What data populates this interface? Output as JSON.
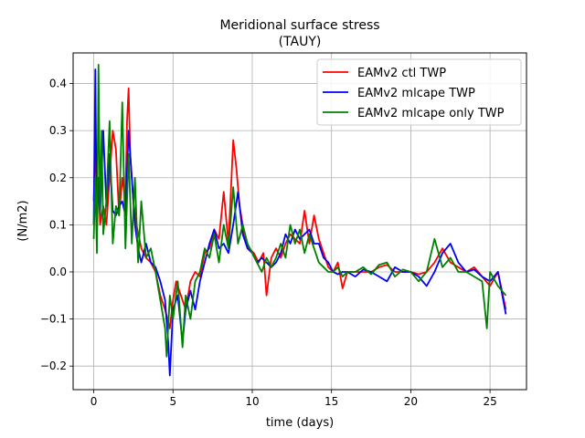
{
  "chart_data": {
    "type": "line",
    "title": "Meridional surface stress",
    "subtitle": "(TAUY)",
    "xlabel": "time (days)",
    "ylabel": "(N/m2)",
    "xlim": [
      -1.3,
      27.3
    ],
    "ylim": [
      -0.25,
      0.465
    ],
    "x_ticks": [
      0,
      5,
      10,
      15,
      20,
      25
    ],
    "y_ticks": [
      -0.2,
      -0.1,
      0.0,
      0.1,
      0.2,
      0.3,
      0.4
    ],
    "x_tick_labels": [
      "0",
      "5",
      "10",
      "15",
      "20",
      "25"
    ],
    "y_tick_labels": [
      "−0.2",
      "−0.1",
      "0.0",
      "0.1",
      "0.2",
      "0.3",
      "0.4"
    ],
    "grid": true,
    "legend_position": "top-right",
    "series": [
      {
        "name": "EAMv2 ctl TWP",
        "color": "#ff0000",
        "x": [
          0,
          0.1,
          0.2,
          0.3,
          0.4,
          0.6,
          0.8,
          1.0,
          1.2,
          1.4,
          1.6,
          1.8,
          2.0,
          2.1,
          2.2,
          2.3,
          2.5,
          2.7,
          3.0,
          3.3,
          3.6,
          3.9,
          4.2,
          4.5,
          4.8,
          5.0,
          5.2,
          5.5,
          5.8,
          6.1,
          6.4,
          6.7,
          7.0,
          7.3,
          7.6,
          7.9,
          8.2,
          8.5,
          8.8,
          9.0,
          9.2,
          9.5,
          9.8,
          10.1,
          10.4,
          10.7,
          10.9,
          11.2,
          11.5,
          11.8,
          12.1,
          12.4,
          12.7,
          13.0,
          13.3,
          13.6,
          13.9,
          14.2,
          14.5,
          14.8,
          15.1,
          15.4,
          15.7,
          16.0,
          16.5,
          17.0,
          17.5,
          18.0,
          18.5,
          19.0,
          19.5,
          20.0,
          20.5,
          21.0,
          21.5,
          22.0,
          22.5,
          23.0,
          23.5,
          24.0,
          24.5,
          25.0,
          25.5,
          26.0
        ],
        "y": [
          0.15,
          0.29,
          0.12,
          0.2,
          0.1,
          0.14,
          0.1,
          0.2,
          0.3,
          0.26,
          0.12,
          0.2,
          0.15,
          0.32,
          0.39,
          0.25,
          0.15,
          0.1,
          0.05,
          0.03,
          0.02,
          0.0,
          -0.05,
          -0.08,
          -0.12,
          -0.06,
          -0.02,
          -0.05,
          -0.08,
          -0.02,
          0.0,
          -0.01,
          0.04,
          0.05,
          0.09,
          0.07,
          0.17,
          0.06,
          0.28,
          0.22,
          0.14,
          0.08,
          0.05,
          0.04,
          0.02,
          0.04,
          -0.05,
          0.03,
          0.05,
          0.03,
          0.06,
          0.08,
          0.07,
          0.06,
          0.13,
          0.06,
          0.12,
          0.07,
          0.04,
          0.01,
          0.0,
          0.02,
          -0.035,
          0.0,
          0.0,
          0.0,
          0.0,
          0.01,
          0.015,
          0.0,
          0.0,
          0.0,
          -0.005,
          0.0,
          0.02,
          0.05,
          0.02,
          0.01,
          0.0,
          0.01,
          -0.01,
          -0.03,
          0.0,
          -0.08
        ]
      },
      {
        "name": "EAMv2 mlcape TWP",
        "color": "#0000ff",
        "x": [
          0,
          0.1,
          0.2,
          0.3,
          0.4,
          0.6,
          0.8,
          1.0,
          1.2,
          1.4,
          1.6,
          1.8,
          2.0,
          2.2,
          2.4,
          2.6,
          2.8,
          3.0,
          3.3,
          3.6,
          3.9,
          4.2,
          4.5,
          4.7,
          4.8,
          5.0,
          5.3,
          5.6,
          5.8,
          6.1,
          6.4,
          6.7,
          7.0,
          7.3,
          7.6,
          7.9,
          8.2,
          8.5,
          8.8,
          9.1,
          9.4,
          9.7,
          10.0,
          10.3,
          10.6,
          10.9,
          11.2,
          11.5,
          11.8,
          12.1,
          12.4,
          12.7,
          13.0,
          13.3,
          13.6,
          13.9,
          14.2,
          14.5,
          14.8,
          15.1,
          15.4,
          15.7,
          16.0,
          16.5,
          17.0,
          17.5,
          18.0,
          18.5,
          19.0,
          19.5,
          20.0,
          20.5,
          21.0,
          21.5,
          22.0,
          22.5,
          23.0,
          23.5,
          24.0,
          24.5,
          25.0,
          25.5,
          26.0
        ],
        "y": [
          0.1,
          0.43,
          0.08,
          0.2,
          0.12,
          0.3,
          0.14,
          0.25,
          0.13,
          0.12,
          0.14,
          0.15,
          0.12,
          0.3,
          0.2,
          0.1,
          0.05,
          0.02,
          0.06,
          0.02,
          0.01,
          -0.02,
          -0.06,
          -0.15,
          -0.22,
          -0.08,
          -0.05,
          -0.15,
          -0.08,
          -0.04,
          -0.08,
          -0.02,
          0.02,
          0.06,
          0.09,
          0.05,
          0.06,
          0.04,
          0.1,
          0.17,
          0.08,
          0.05,
          0.04,
          0.02,
          0.03,
          0.02,
          0.01,
          0.02,
          0.04,
          0.08,
          0.06,
          0.09,
          0.07,
          0.08,
          0.09,
          0.06,
          0.06,
          0.03,
          0.02,
          0.0,
          -0.005,
          0.0,
          0.0,
          -0.01,
          0.005,
          0.0,
          -0.01,
          -0.02,
          0.01,
          0.0,
          0.0,
          -0.01,
          -0.03,
          0.0,
          0.04,
          0.06,
          0.02,
          0.0,
          0.005,
          -0.01,
          -0.02,
          0.0,
          -0.09
        ]
      },
      {
        "name": "EAMv2 mlcape only TWP",
        "color": "#008000",
        "x": [
          0,
          0.1,
          0.2,
          0.3,
          0.4,
          0.5,
          0.6,
          0.8,
          1.0,
          1.2,
          1.4,
          1.6,
          1.8,
          2.0,
          2.2,
          2.4,
          2.6,
          2.8,
          3.0,
          3.3,
          3.6,
          3.9,
          4.2,
          4.5,
          4.6,
          4.8,
          5.0,
          5.3,
          5.6,
          5.8,
          6.1,
          6.4,
          6.7,
          7.0,
          7.3,
          7.6,
          7.9,
          8.2,
          8.5,
          8.8,
          9.1,
          9.4,
          9.7,
          10.0,
          10.3,
          10.6,
          10.9,
          11.2,
          11.5,
          11.8,
          12.1,
          12.4,
          12.7,
          13.0,
          13.3,
          13.6,
          13.9,
          14.2,
          14.5,
          14.8,
          15.1,
          15.4,
          15.7,
          16.0,
          16.5,
          17.0,
          17.5,
          18.0,
          18.5,
          19.0,
          19.5,
          20.0,
          20.5,
          21.0,
          21.5,
          22.0,
          22.5,
          23.0,
          23.5,
          24.0,
          24.5,
          24.8,
          25.0,
          25.5,
          26.0
        ],
        "y": [
          0.07,
          0.2,
          0.04,
          0.44,
          0.12,
          0.3,
          0.08,
          0.15,
          0.32,
          0.06,
          0.14,
          0.12,
          0.36,
          0.05,
          0.25,
          0.06,
          0.2,
          0.02,
          0.15,
          0.03,
          0.05,
          0.0,
          -0.06,
          -0.12,
          -0.18,
          -0.05,
          -0.1,
          -0.02,
          -0.16,
          -0.05,
          -0.1,
          -0.02,
          0.0,
          0.05,
          0.03,
          0.08,
          0.02,
          0.1,
          0.05,
          0.18,
          0.06,
          0.1,
          0.06,
          0.04,
          0.02,
          0.0,
          0.03,
          0.01,
          0.03,
          0.06,
          0.03,
          0.1,
          0.06,
          0.09,
          0.04,
          0.08,
          0.05,
          0.02,
          0.01,
          0.0,
          0.0,
          0.01,
          -0.01,
          0.0,
          0.0,
          0.01,
          -0.005,
          0.015,
          0.02,
          -0.01,
          0.005,
          0.0,
          -0.02,
          0.0,
          0.07,
          0.01,
          0.03,
          0.0,
          0.0,
          -0.01,
          -0.02,
          -0.12,
          0.0,
          -0.03,
          -0.05
        ]
      }
    ]
  }
}
